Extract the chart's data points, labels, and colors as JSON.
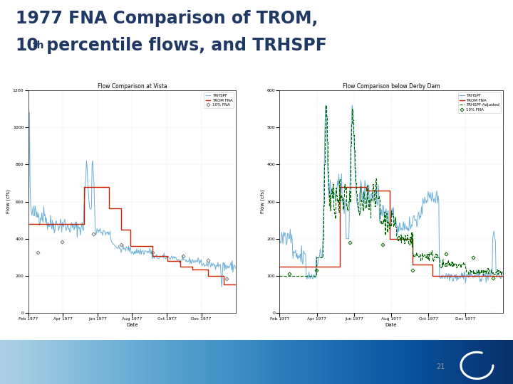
{
  "title_line1": "1977 FNA Comparison of TROM,",
  "title_line2": "10",
  "title_superscript": "th",
  "title_line2_rest": " percentile flows, and TRHSPF",
  "title_color": "#1F3864",
  "background_color": "#FFFFFF",
  "slide_number": "21",
  "chart1_title": "Flow Comparison at Vista",
  "chart1_xlabel": "Date",
  "chart1_ylabel": "Flow (cfs)",
  "chart1_ylim": [
    0,
    1200
  ],
  "chart1_yticks": [
    0,
    200,
    400,
    600,
    800,
    1000,
    1200
  ],
  "chart1_xtick_labels": [
    "Feb 1977",
    "Apr 1977",
    "Jun 1977",
    "Aug 1977",
    "Oct 1977",
    "Dec 1977"
  ],
  "chart2_title": "Flow Comparison below Derby Dam",
  "chart2_xlabel": "Date",
  "chart2_ylabel": "Flow (cfs)",
  "chart2_ylim": [
    0,
    600
  ],
  "chart2_yticks": [
    0,
    100,
    200,
    300,
    400,
    500,
    600
  ],
  "chart2_xtick_labels": [
    "Feb 1977",
    "Apr 1977",
    "Jun 1977",
    "Aug 1977",
    "Oct 1977",
    "Dec 1977"
  ],
  "color_trhspf": "#6BAED6",
  "color_trom": "#CC2200",
  "color_trhspf_adj": "#006600",
  "color_pct10": "#777777",
  "n_days": 335
}
